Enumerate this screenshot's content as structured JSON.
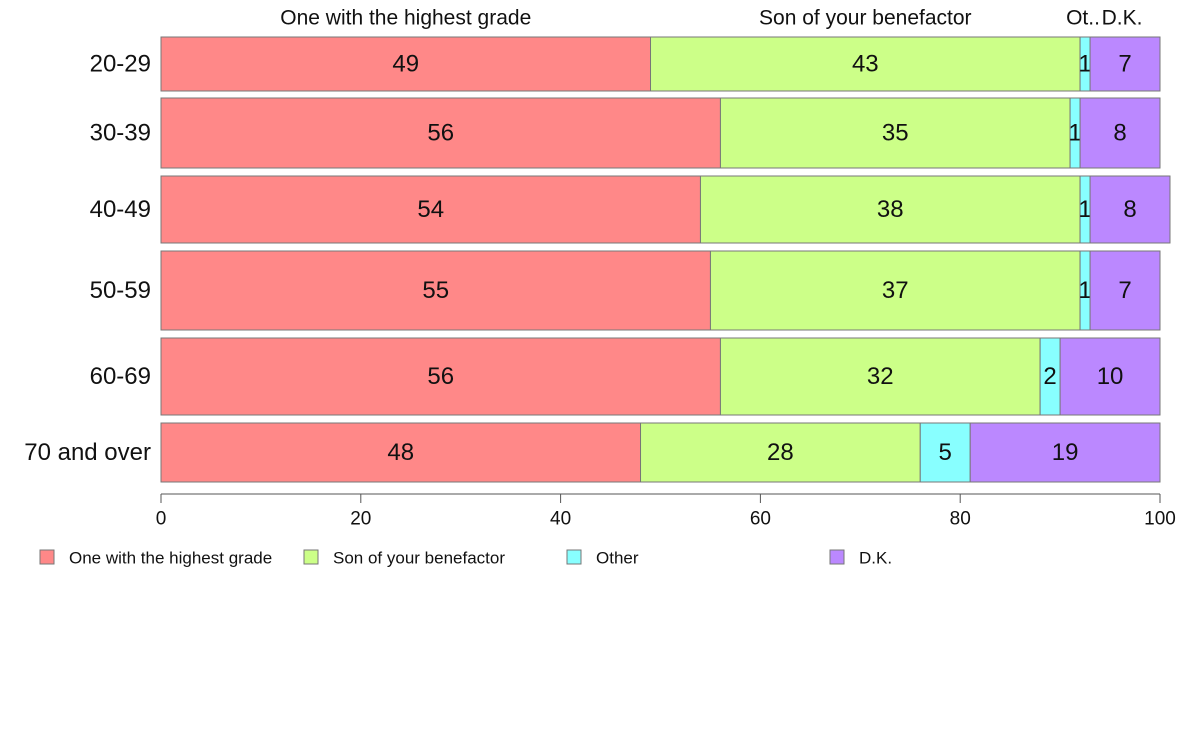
{
  "chart_data": {
    "type": "bar",
    "orientation": "horizontal",
    "stacked": true,
    "categories": [
      "20-29",
      "30-39",
      "40-49",
      "50-59",
      "60-69",
      "70 and over"
    ],
    "series": [
      {
        "name": "One with the highest grade",
        "color": "#FF8888",
        "values": [
          49,
          56,
          54,
          55,
          56,
          48
        ]
      },
      {
        "name": "Son of your benefactor",
        "color": "#CCFF88",
        "values": [
          43,
          35,
          38,
          37,
          32,
          28
        ]
      },
      {
        "name": "Other",
        "color": "#88FFFF",
        "values": [
          1,
          1,
          1,
          1,
          2,
          5
        ]
      },
      {
        "name": "D.K.",
        "color": "#BB88FF",
        "values": [
          7,
          8,
          8,
          7,
          10,
          19
        ]
      }
    ],
    "top_labels": [
      "One with the highest grade",
      "Son of your benefactor",
      "Ot..",
      "D.K."
    ],
    "xlim": [
      0,
      100
    ],
    "xticks": [
      "0",
      "20",
      "40",
      "60",
      "80",
      "100"
    ],
    "grid": false,
    "legend_position": "bottom"
  }
}
